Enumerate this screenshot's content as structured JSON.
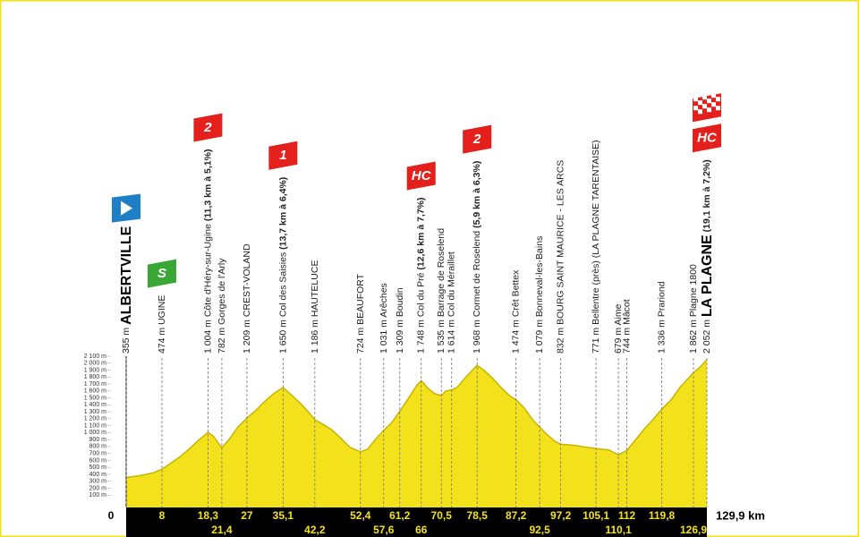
{
  "chart_data": {
    "type": "area",
    "color": "#f3e21b",
    "edge_color": "#c9b400",
    "x": [
      0,
      3,
      6,
      8,
      10,
      12,
      14,
      16,
      17.5,
      18.3,
      19.5,
      21.4,
      23,
      25,
      27,
      29,
      31,
      33,
      35.1,
      37,
      39,
      41,
      42.2,
      44,
      46,
      48,
      50,
      52.4,
      54,
      56,
      57.6,
      59.5,
      61.2,
      63,
      65,
      66,
      67.5,
      69,
      70.5,
      71.5,
      72.8,
      74,
      76,
      78.5,
      80,
      82,
      84,
      86,
      87.2,
      89,
      91,
      92.5,
      94,
      96,
      97.2,
      100,
      103,
      105.1,
      108,
      110.1,
      112,
      114,
      116,
      118,
      119.8,
      122,
      124,
      126.9,
      128.5,
      129.9
    ],
    "values": [
      355,
      380,
      420,
      474,
      560,
      650,
      760,
      880,
      960,
      1004,
      950,
      782,
      900,
      1080,
      1209,
      1320,
      1450,
      1560,
      1650,
      1540,
      1420,
      1280,
      1186,
      1120,
      1040,
      920,
      790,
      724,
      760,
      920,
      1031,
      1150,
      1309,
      1480,
      1680,
      1748,
      1640,
      1560,
      1535,
      1600,
      1614,
      1650,
      1800,
      1968,
      1900,
      1780,
      1640,
      1520,
      1474,
      1360,
      1180,
      1079,
      980,
      870,
      832,
      820,
      790,
      771,
      750,
      679,
      744,
      900,
      1060,
      1200,
      1336,
      1480,
      1660,
      1862,
      1950,
      2052
    ],
    "xlim": [
      0,
      129.9
    ],
    "ylim": [
      0,
      2100
    ],
    "yticks": [
      {
        "value": 100,
        "label": "100 m"
      },
      {
        "value": 200,
        "label": "200 m"
      },
      {
        "value": 300,
        "label": "300 m"
      },
      {
        "value": 400,
        "label": "400 m"
      },
      {
        "value": 500,
        "label": "500 m"
      },
      {
        "value": 600,
        "label": "600 m"
      },
      {
        "value": 700,
        "label": "700 m"
      },
      {
        "value": 800,
        "label": "800 m"
      },
      {
        "value": 900,
        "label": "900 m"
      },
      {
        "value": 1000,
        "label": "1 000 m"
      },
      {
        "value": 1100,
        "label": "1 100 m"
      },
      {
        "value": 1200,
        "label": "1 200 m"
      },
      {
        "value": 1300,
        "label": "1 300 m"
      },
      {
        "value": 1400,
        "label": "1 400 m"
      },
      {
        "value": 1500,
        "label": "1 500 m"
      },
      {
        "value": 1600,
        "label": "1 600 m"
      },
      {
        "value": 1700,
        "label": "1 700 m"
      },
      {
        "value": 1800,
        "label": "1 800 m"
      },
      {
        "value": 1900,
        "label": "1 900 m"
      },
      {
        "value": 2000,
        "label": "2 000 m"
      },
      {
        "value": 2100,
        "label": "2 100 m"
      }
    ],
    "xticks": [
      0,
      8,
      {
        "value": 18.3,
        "label": "18,3"
      },
      {
        "value": 21.4,
        "label": "21,4"
      },
      27,
      {
        "value": 35.1,
        "label": "35,1"
      },
      {
        "value": 42.2,
        "label": "42,2"
      },
      {
        "value": 52.4,
        "label": "52,4"
      },
      {
        "value": 57.6,
        "label": "57,6"
      },
      {
        "value": 61.2,
        "label": "61,2"
      },
      66,
      {
        "value": 70.5,
        "label": "70,5"
      },
      {
        "value": 78.5,
        "label": "78,5"
      },
      {
        "value": 87.2,
        "label": "87,2"
      },
      {
        "value": 92.5,
        "label": "92,5"
      },
      {
        "value": 97.2,
        "label": "97,2"
      },
      {
        "value": 105.1,
        "label": "105,1"
      },
      {
        "value": 110.1,
        "label": "110,1"
      },
      112,
      {
        "value": 119.8,
        "label": "119,8"
      },
      {
        "value": 126.9,
        "label": "126,9"
      },
      {
        "value": 129.9,
        "label": "129,9 km"
      }
    ],
    "waypoints": [
      {
        "km": 0,
        "text": "355 m ",
        "name": "ALBERTVILLE"
      },
      {
        "km": 8,
        "text": "474 m UGINE",
        "badge": "S"
      },
      {
        "km": 18.3,
        "text": "1 004 m Côte d'Héry-sur-Ugine ",
        "climb": "(11,3 km à 5,1%)",
        "badge": "2"
      },
      {
        "km": 21.4,
        "text": "782 m Gorges de l'Arly"
      },
      {
        "km": 27,
        "text": "1 209 m CREST-VOLAND"
      },
      {
        "km": 35.1,
        "text": "1 650 m Col des Saisies ",
        "climb": "(13,7 km à 6,4%)",
        "badge": "1"
      },
      {
        "km": 42.2,
        "text": "1 186 m HAUTELUCE"
      },
      {
        "km": 52.4,
        "text": "724 m BEAUFORT"
      },
      {
        "km": 57.6,
        "text": "1 031 m Arêches"
      },
      {
        "km": 61.2,
        "text": "1 309 m Boudin"
      },
      {
        "km": 66,
        "text": "1 748 m Col du Pré ",
        "climb": "(12,6 km à 7,7%)",
        "badge": "HC"
      },
      {
        "km": 70.5,
        "text": "1 535 m Barrage de Roselend"
      },
      {
        "km": 72.8,
        "text": "1 614 m Col du Méraillet"
      },
      {
        "km": 78.5,
        "text": "1 968 m Cormet de Roselend ",
        "climb": "(5,9 km à 6,3%)",
        "badge": "2"
      },
      {
        "km": 87.2,
        "text": "1 474 m Crêt Bettex"
      },
      {
        "km": 92.5,
        "text": "1 079 m Bonneval-les-Bains"
      },
      {
        "km": 97.2,
        "text": "832 m BOURG SAINT MAURICE - LES ARCS"
      },
      {
        "km": 105.1,
        "text": "771 m Bellentre (près) (LA PLAGNE TARENTAISE)"
      },
      {
        "km": 110.1,
        "text": "679 m Aime"
      },
      {
        "km": 112,
        "text": "744 m Mâcot"
      },
      {
        "km": 119.8,
        "text": "1 336 m Prariond"
      },
      {
        "km": 126.9,
        "text": "1 862 m Plagne 1800"
      },
      {
        "km": 129.9,
        "text": "2 052 m ",
        "name": "LA PLAGNE",
        "climb": " (19,1 km à 7,2%)",
        "badge": "HC"
      }
    ]
  }
}
